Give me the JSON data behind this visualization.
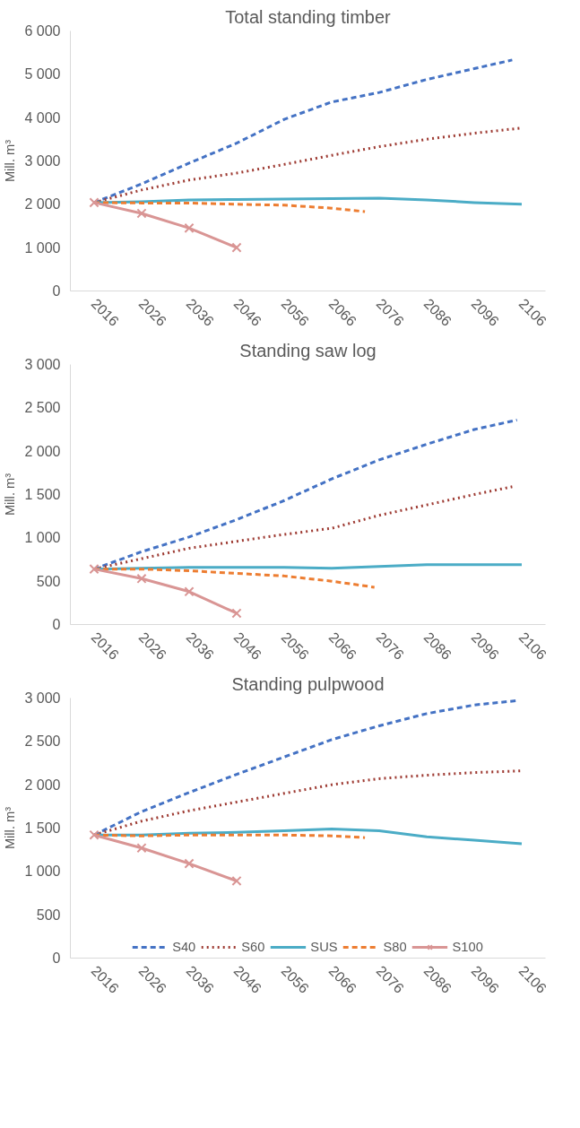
{
  "chart_data": [
    {
      "type": "line",
      "title": "Total standing timber",
      "ylabel": "Mill. m³",
      "xlim": [
        2011,
        2111
      ],
      "xticks": [
        2016,
        2026,
        2036,
        2046,
        2056,
        2066,
        2076,
        2086,
        2096,
        2106
      ],
      "ylim": [
        0,
        6000
      ],
      "yticks": [
        0,
        {
          "value": 1000,
          "label": "1 000"
        },
        {
          "value": 2000,
          "label": "2 000"
        },
        {
          "value": 3000,
          "label": "3 000"
        },
        {
          "value": 4000,
          "label": "4 000"
        },
        {
          "value": 5000,
          "label": "5 000"
        },
        {
          "value": 6000,
          "label": "6 000"
        }
      ],
      "grid": false,
      "series": [
        {
          "color": "#4472c4",
          "line_style": "dashed",
          "x": [
            2016,
            2026,
            2036,
            2046,
            2056,
            2066,
            2076,
            2086,
            2096,
            2104
          ],
          "values": [
            2040,
            2470,
            2950,
            3410,
            3960,
            4360,
            4580,
            4880,
            5130,
            5330
          ]
        },
        {
          "color": "#9e3b33",
          "line_style": "dotted",
          "x": [
            2016,
            2026,
            2036,
            2046,
            2056,
            2066,
            2076,
            2086,
            2096,
            2106
          ],
          "values": [
            2040,
            2330,
            2560,
            2720,
            2920,
            3130,
            3330,
            3500,
            3640,
            3760
          ]
        },
        {
          "color": "#4bacc6",
          "line_style": "solid",
          "x": [
            2016,
            2026,
            2036,
            2046,
            2056,
            2066,
            2076,
            2086,
            2096,
            2106
          ],
          "values": [
            2040,
            2060,
            2100,
            2110,
            2120,
            2130,
            2140,
            2100,
            2040,
            2000
          ]
        },
        {
          "color": "#ed7d31",
          "line_style": "dashed",
          "x": [
            2016,
            2026,
            2036,
            2046,
            2056,
            2066,
            2073
          ],
          "values": [
            2040,
            2030,
            2030,
            2000,
            1980,
            1910,
            1830
          ]
        },
        {
          "color": "#d99594",
          "line_style": "solid",
          "marker": "cross",
          "x": [
            2016,
            2026,
            2036,
            2046
          ],
          "values": [
            2040,
            1790,
            1450,
            1000
          ]
        }
      ]
    },
    {
      "type": "line",
      "title": "Standing saw log",
      "ylabel": "Mill. m³",
      "xlim": [
        2011,
        2111
      ],
      "xticks": [
        2016,
        2026,
        2036,
        2046,
        2056,
        2066,
        2076,
        2086,
        2096,
        2106
      ],
      "ylim": [
        0,
        3000
      ],
      "yticks": [
        0,
        500,
        {
          "value": 1000,
          "label": "1 000"
        },
        {
          "value": 1500,
          "label": "1 500"
        },
        {
          "value": 2000,
          "label": "2 000"
        },
        {
          "value": 2500,
          "label": "2 500"
        },
        {
          "value": 3000,
          "label": "3 000"
        }
      ],
      "grid": false,
      "series": [
        {
          "color": "#4472c4",
          "line_style": "dashed",
          "x": [
            2016,
            2026,
            2036,
            2046,
            2056,
            2066,
            2076,
            2086,
            2096,
            2105
          ],
          "values": [
            640,
            840,
            1010,
            1210,
            1430,
            1680,
            1900,
            2080,
            2250,
            2360
          ]
        },
        {
          "color": "#9e3b33",
          "line_style": "dotted",
          "x": [
            2016,
            2026,
            2036,
            2046,
            2056,
            2066,
            2076,
            2086,
            2096,
            2104
          ],
          "values": [
            640,
            760,
            880,
            960,
            1040,
            1110,
            1260,
            1380,
            1500,
            1590
          ]
        },
        {
          "color": "#4bacc6",
          "line_style": "solid",
          "x": [
            2016,
            2026,
            2036,
            2046,
            2056,
            2066,
            2076,
            2086,
            2096,
            2106
          ],
          "values": [
            640,
            650,
            660,
            660,
            660,
            650,
            670,
            690,
            690,
            690
          ]
        },
        {
          "color": "#ed7d31",
          "line_style": "dashed",
          "x": [
            2016,
            2026,
            2036,
            2046,
            2056,
            2066,
            2075
          ],
          "values": [
            640,
            640,
            620,
            590,
            560,
            500,
            430
          ]
        },
        {
          "color": "#d99594",
          "line_style": "solid",
          "marker": "cross",
          "x": [
            2016,
            2026,
            2036,
            2046
          ],
          "values": [
            640,
            530,
            380,
            130
          ]
        }
      ]
    },
    {
      "type": "line",
      "title": "Standing pulpwood",
      "ylabel": "Mill. m³",
      "xlim": [
        2011,
        2111
      ],
      "xticks": [
        2016,
        2026,
        2036,
        2046,
        2056,
        2066,
        2076,
        2086,
        2096,
        2106
      ],
      "ylim": [
        0,
        3000
      ],
      "yticks": [
        0,
        500,
        {
          "value": 1000,
          "label": "1 000"
        },
        {
          "value": 1500,
          "label": "1 500"
        },
        {
          "value": 2000,
          "label": "2 000"
        },
        {
          "value": 2500,
          "label": "2 500"
        },
        {
          "value": 3000,
          "label": "3 000"
        }
      ],
      "grid": false,
      "legend": "bottom",
      "series": [
        {
          "name": "S40",
          "color": "#4472c4",
          "line_style": "dashed",
          "x": [
            2016,
            2026,
            2036,
            2046,
            2056,
            2066,
            2076,
            2086,
            2096,
            2105
          ],
          "values": [
            1420,
            1690,
            1910,
            2120,
            2320,
            2520,
            2680,
            2820,
            2920,
            2970
          ]
        },
        {
          "name": "S60",
          "color": "#9e3b33",
          "line_style": "dotted",
          "x": [
            2016,
            2026,
            2036,
            2046,
            2056,
            2066,
            2076,
            2086,
            2096,
            2106
          ],
          "values": [
            1420,
            1580,
            1700,
            1800,
            1900,
            2000,
            2070,
            2110,
            2140,
            2160
          ]
        },
        {
          "name": "SUS",
          "color": "#4bacc6",
          "line_style": "solid",
          "x": [
            2016,
            2026,
            2036,
            2046,
            2056,
            2066,
            2076,
            2086,
            2096,
            2106
          ],
          "values": [
            1420,
            1420,
            1440,
            1450,
            1470,
            1490,
            1470,
            1400,
            1360,
            1320
          ]
        },
        {
          "name": "S80",
          "color": "#ed7d31",
          "line_style": "dashed",
          "x": [
            2016,
            2026,
            2036,
            2046,
            2056,
            2066,
            2073
          ],
          "values": [
            1420,
            1410,
            1420,
            1420,
            1420,
            1410,
            1390
          ]
        },
        {
          "name": "S100",
          "color": "#d99594",
          "line_style": "solid",
          "marker": "cross",
          "x": [
            2016,
            2026,
            2036,
            2046
          ],
          "values": [
            1420,
            1270,
            1090,
            890
          ]
        }
      ]
    }
  ]
}
